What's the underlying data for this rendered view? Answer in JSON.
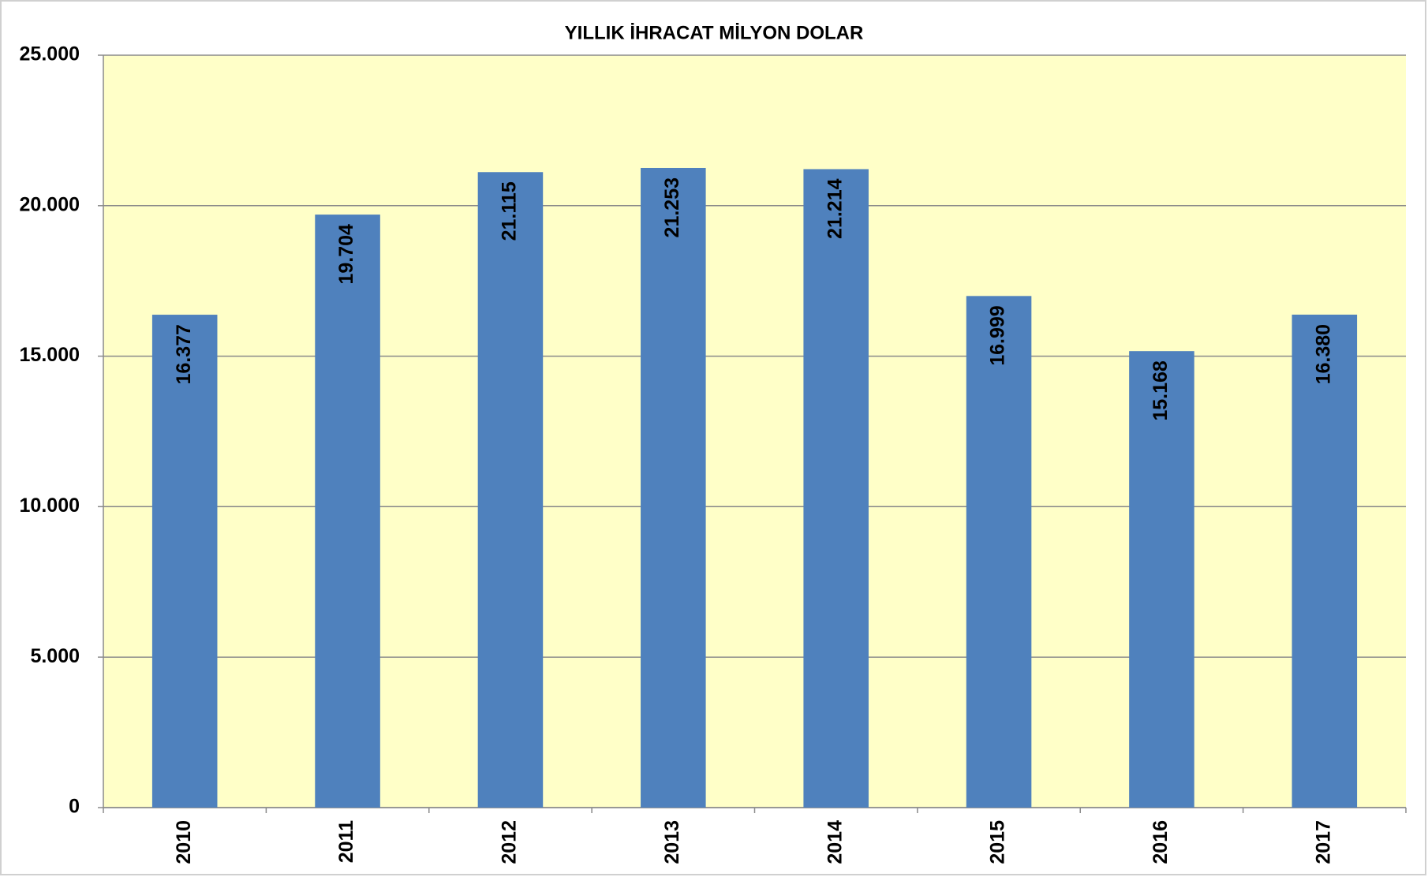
{
  "chart_data": {
    "type": "bar",
    "title": "YILLIK İHRACAT MİLYON DOLAR",
    "categories": [
      "2010",
      "2011",
      "2012",
      "2013",
      "2014",
      "2015",
      "2016",
      "2017"
    ],
    "values": [
      16377,
      19704,
      21115,
      21253,
      21214,
      16999,
      15168,
      16380
    ],
    "value_labels": [
      "16.377",
      "19.704",
      "21.115",
      "21.253",
      "21.214",
      "16.999",
      "15.168",
      "16.380"
    ],
    "color": "#4f81bd",
    "ylim": [
      0,
      25000
    ],
    "yticks": [
      0,
      {
        "value": 5000,
        "label": "5.000"
      },
      {
        "value": 10000,
        "label": "10.000"
      },
      {
        "value": 15000,
        "label": "15.000"
      },
      {
        "value": 20000,
        "label": "20.000"
      },
      {
        "value": 25000,
        "label": "25.000"
      }
    ],
    "grid": true
  }
}
